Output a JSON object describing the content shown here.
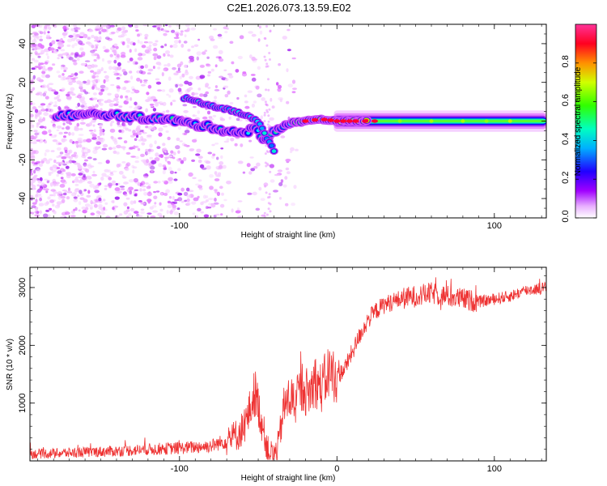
{
  "title": "C2E1.2026.073.13.59.E02",
  "chart_data": [
    {
      "type": "heatmap",
      "name": "spectrogram",
      "xlabel": "Height of straight line (km)",
      "ylabel": "Frequency (Hz)",
      "xlim": [
        -195,
        133
      ],
      "ylim": [
        -50,
        50
      ],
      "xticks": [
        -100,
        0,
        100
      ],
      "xtick_labels": [
        "-100",
        "",
        "100"
      ],
      "yticks": [
        -40,
        -20,
        0,
        20,
        40
      ],
      "ytick_labels": [
        "-40",
        "-20",
        "0",
        "20",
        "40"
      ],
      "colorbar": {
        "label": "Normalized spectral amplitude",
        "range": [
          0,
          1
        ],
        "ticks": [
          0.0,
          0.2,
          0.4,
          0.6,
          0.8
        ],
        "tick_labels": [
          "0.0",
          "0.2",
          "0.4",
          "0.6",
          "0.8"
        ],
        "colors": [
          "#ffffff",
          "#e066ff",
          "#7a00e6",
          "#0000ff",
          "#00e5ff",
          "#00ff66",
          "#aaff00",
          "#ffee00",
          "#ff6600",
          "#ff0033",
          "#ff33aa"
        ]
      },
      "signal_track": [
        {
          "x": -178,
          "f": 3
        },
        {
          "x": -160,
          "f": 3
        },
        {
          "x": -150,
          "f": 3.5
        },
        {
          "x": -140,
          "f": 3
        },
        {
          "x": -130,
          "f": 2
        },
        {
          "x": -120,
          "f": 1.5
        },
        {
          "x": -110,
          "f": 1
        },
        {
          "x": -100,
          "f": 0
        },
        {
          "x": -90,
          "f": -2
        },
        {
          "x": -80,
          "f": -3
        },
        {
          "x": -70,
          "f": -5
        },
        {
          "x": -60,
          "f": -6
        },
        {
          "x": -52,
          "f": -4
        },
        {
          "x": -45,
          "f": -10
        },
        {
          "x": -40,
          "f": -5
        },
        {
          "x": -35,
          "f": -3
        },
        {
          "x": -30,
          "f": -1
        },
        {
          "x": -20,
          "f": 0
        },
        {
          "x": -10,
          "f": 1
        },
        {
          "x": 0,
          "f": 0
        },
        {
          "x": 10,
          "f": 0
        },
        {
          "x": 30,
          "f": 0
        },
        {
          "x": 60,
          "f": 0
        },
        {
          "x": 100,
          "f": 0
        },
        {
          "x": 133,
          "f": 0
        }
      ],
      "upper_branch": [
        {
          "x": -97,
          "f": 12
        },
        {
          "x": -85,
          "f": 9
        },
        {
          "x": -75,
          "f": 7
        },
        {
          "x": -65,
          "f": 5
        },
        {
          "x": -58,
          "f": 3
        },
        {
          "x": -50,
          "f": 0
        },
        {
          "x": -45,
          "f": -8
        },
        {
          "x": -40,
          "f": -15
        }
      ]
    },
    {
      "type": "line",
      "name": "snr",
      "xlabel": "Height of straight line (km)",
      "ylabel": "SNR (10 * v/v)",
      "xlim": [
        -195,
        133
      ],
      "ylim": [
        0,
        3350
      ],
      "xticks": [
        -100,
        0,
        100
      ],
      "xtick_labels": [
        "-100",
        "0",
        "100"
      ],
      "yticks": [
        1000,
        2000,
        3000
      ],
      "ytick_labels": [
        "1000",
        "2000",
        "3000"
      ],
      "color": "#ee3333",
      "series": [
        {
          "name": "SNR",
          "x": [
            -195,
            -180,
            -160,
            -140,
            -120,
            -100,
            -90,
            -80,
            -70,
            -62,
            -58,
            -55,
            -52,
            -48,
            -44,
            -40,
            -37,
            -34,
            -30,
            -26,
            -22,
            -18,
            -14,
            -10,
            -5,
            0,
            5,
            10,
            15,
            20,
            25,
            30,
            40,
            50,
            60,
            70,
            80,
            90,
            100,
            110,
            120,
            133
          ],
          "y": [
            120,
            130,
            150,
            170,
            200,
            220,
            240,
            260,
            350,
            480,
            650,
            900,
            1200,
            700,
            200,
            100,
            300,
            900,
            1100,
            1000,
            1300,
            1150,
            1400,
            1250,
            1550,
            1450,
            1600,
            1900,
            2200,
            2450,
            2600,
            2700,
            2800,
            2850,
            2900,
            2850,
            2800,
            2750,
            2800,
            2850,
            2950,
            3000
          ]
        }
      ]
    }
  ]
}
